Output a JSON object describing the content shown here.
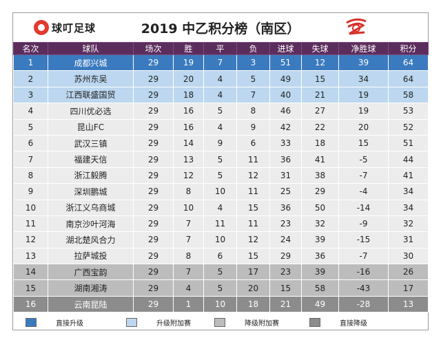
{
  "header": {
    "logo_text": "球叮足球",
    "title": "2019 中乙积分榜（南区）"
  },
  "colors": {
    "header_bg": "#5b2d5d",
    "direct": "#3a7abf",
    "playoff_up": "#bcd7ef",
    "normal": "#ececec",
    "playoff_down": "#bcbcbc",
    "relegate": "#8c8c8c"
  },
  "columns": [
    "名次",
    "球队",
    "场次",
    "胜",
    "平",
    "负",
    "进球",
    "失球",
    "净胜球",
    "积分"
  ],
  "rows": [
    {
      "rank": "1",
      "team": "成都兴城",
      "played": "29",
      "w": "19",
      "d": "7",
      "l": "3",
      "gf": "51",
      "ga": "12",
      "gd": "39",
      "pts": "64",
      "zone": "direct"
    },
    {
      "rank": "2",
      "team": "苏州东吴",
      "played": "29",
      "w": "20",
      "d": "4",
      "l": "5",
      "gf": "49",
      "ga": "15",
      "gd": "34",
      "pts": "64",
      "zone": "playup"
    },
    {
      "rank": "3",
      "team": "江西联盛国贸",
      "played": "29",
      "w": "18",
      "d": "4",
      "l": "7",
      "gf": "40",
      "ga": "21",
      "gd": "19",
      "pts": "58",
      "zone": "playup"
    },
    {
      "rank": "4",
      "team": "四川优必选",
      "played": "29",
      "w": "16",
      "d": "5",
      "l": "8",
      "gf": "46",
      "ga": "27",
      "gd": "19",
      "pts": "53",
      "zone": "normal"
    },
    {
      "rank": "5",
      "team": "昆山FC",
      "played": "29",
      "w": "16",
      "d": "4",
      "l": "9",
      "gf": "42",
      "ga": "22",
      "gd": "20",
      "pts": "52",
      "zone": "normal"
    },
    {
      "rank": "6",
      "team": "武汉三镇",
      "played": "29",
      "w": "14",
      "d": "9",
      "l": "6",
      "gf": "33",
      "ga": "18",
      "gd": "15",
      "pts": "51",
      "zone": "normal"
    },
    {
      "rank": "7",
      "team": "福建天信",
      "played": "29",
      "w": "13",
      "d": "5",
      "l": "11",
      "gf": "36",
      "ga": "41",
      "gd": "-5",
      "pts": "44",
      "zone": "normal"
    },
    {
      "rank": "8",
      "team": "浙江毅腾",
      "played": "29",
      "w": "12",
      "d": "5",
      "l": "12",
      "gf": "31",
      "ga": "38",
      "gd": "-7",
      "pts": "41",
      "zone": "normal"
    },
    {
      "rank": "9",
      "team": "深圳鹏城",
      "played": "29",
      "w": "8",
      "d": "10",
      "l": "11",
      "gf": "25",
      "ga": "29",
      "gd": "-4",
      "pts": "34",
      "zone": "normal"
    },
    {
      "rank": "10",
      "team": "浙江义乌商城",
      "played": "29",
      "w": "10",
      "d": "4",
      "l": "15",
      "gf": "36",
      "ga": "50",
      "gd": "-14",
      "pts": "34",
      "zone": "normal"
    },
    {
      "rank": "11",
      "team": "南京沙叶河海",
      "played": "29",
      "w": "7",
      "d": "11",
      "l": "11",
      "gf": "23",
      "ga": "32",
      "gd": "-9",
      "pts": "32",
      "zone": "normal"
    },
    {
      "rank": "12",
      "team": "湖北楚风合力",
      "played": "29",
      "w": "7",
      "d": "10",
      "l": "12",
      "gf": "24",
      "ga": "39",
      "gd": "-15",
      "pts": "31",
      "zone": "normal"
    },
    {
      "rank": "13",
      "team": "拉萨城投",
      "played": "29",
      "w": "8",
      "d": "6",
      "l": "15",
      "gf": "29",
      "ga": "36",
      "gd": "-7",
      "pts": "30",
      "zone": "normal"
    },
    {
      "rank": "14",
      "team": "广西宝韵",
      "played": "29",
      "w": "7",
      "d": "5",
      "l": "17",
      "gf": "23",
      "ga": "39",
      "gd": "-16",
      "pts": "26",
      "zone": "playdown"
    },
    {
      "rank": "15",
      "team": "湖南湘涛",
      "played": "29",
      "w": "4",
      "d": "5",
      "l": "20",
      "gf": "15",
      "ga": "58",
      "gd": "-43",
      "pts": "17",
      "zone": "playdown"
    },
    {
      "rank": "16",
      "team": "云南昆陆",
      "played": "29",
      "w": "1",
      "d": "10",
      "l": "18",
      "gf": "21",
      "ga": "49",
      "gd": "-28",
      "pts": "13",
      "zone": "relegate"
    }
  ],
  "legend": [
    {
      "label": "直接升级",
      "color": "#3a7abf"
    },
    {
      "label": "升级附加赛",
      "color": "#bcd7ef"
    },
    {
      "label": "降级附加赛",
      "color": "#bcbcbc"
    },
    {
      "label": "直接降级",
      "color": "#8c8c8c"
    }
  ]
}
